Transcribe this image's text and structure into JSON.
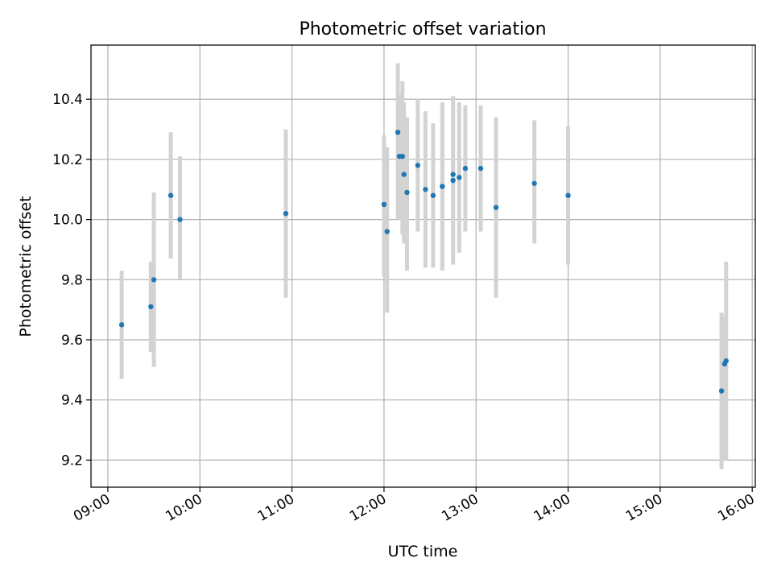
{
  "chart_data": {
    "type": "scatter",
    "title": "Photometric offset variation",
    "xlabel": "UTC time",
    "ylabel": "Photometric offset",
    "x_tick_labels": [
      "09:00",
      "10:00",
      "11:00",
      "12:00",
      "13:00",
      "14:00",
      "15:00",
      "16:00"
    ],
    "y_tick_labels": [
      "9.2",
      "9.4",
      "9.6",
      "9.8",
      "10.0",
      "10.2",
      "10.4"
    ],
    "xlim": [
      "08:49",
      "16:02"
    ],
    "ylim": [
      9.11,
      10.58
    ],
    "grid": true,
    "legend": "none",
    "colors": {
      "point": "#1f77b4",
      "errorbar": "#d3d3d3",
      "grid": "#b0b0b0"
    },
    "points": [
      {
        "x": "09:09",
        "y": 9.65,
        "ylo": 9.47,
        "yhi": 9.83
      },
      {
        "x": "09:28",
        "y": 9.71,
        "ylo": 9.56,
        "yhi": 9.86
      },
      {
        "x": "09:30",
        "y": 9.8,
        "ylo": 9.51,
        "yhi": 10.09
      },
      {
        "x": "09:41",
        "y": 10.08,
        "ylo": 9.87,
        "yhi": 10.29
      },
      {
        "x": "09:47",
        "y": 10.0,
        "ylo": 9.8,
        "yhi": 10.21
      },
      {
        "x": "10:56",
        "y": 10.02,
        "ylo": 9.74,
        "yhi": 10.3
      },
      {
        "x": "12:00",
        "y": 10.05,
        "ylo": 9.81,
        "yhi": 10.28
      },
      {
        "x": "12:02",
        "y": 9.96,
        "ylo": 9.69,
        "yhi": 10.24
      },
      {
        "x": "12:09",
        "y": 10.29,
        "ylo": 10.0,
        "yhi": 10.52
      },
      {
        "x": "12:10",
        "y": 10.21,
        "ylo": 10.0,
        "yhi": 10.42
      },
      {
        "x": "12:12",
        "y": 10.21,
        "ylo": 9.95,
        "yhi": 10.46
      },
      {
        "x": "12:13",
        "y": 10.15,
        "ylo": 9.92,
        "yhi": 10.39
      },
      {
        "x": "12:15",
        "y": 10.09,
        "ylo": 9.83,
        "yhi": 10.34
      },
      {
        "x": "12:22",
        "y": 10.18,
        "ylo": 9.96,
        "yhi": 10.4
      },
      {
        "x": "12:27",
        "y": 10.1,
        "ylo": 9.84,
        "yhi": 10.36
      },
      {
        "x": "12:32",
        "y": 10.08,
        "ylo": 9.84,
        "yhi": 10.32
      },
      {
        "x": "12:38",
        "y": 10.11,
        "ylo": 9.83,
        "yhi": 10.39
      },
      {
        "x": "12:38",
        "y": 10.11,
        "ylo": 9.84,
        "yhi": 10.38
      },
      {
        "x": "12:45",
        "y": 10.15,
        "ylo": 9.89,
        "yhi": 10.41
      },
      {
        "x": "12:45",
        "y": 10.13,
        "ylo": 9.85,
        "yhi": 10.41
      },
      {
        "x": "12:49",
        "y": 10.14,
        "ylo": 9.89,
        "yhi": 10.39
      },
      {
        "x": "12:53",
        "y": 10.17,
        "ylo": 9.96,
        "yhi": 10.38
      },
      {
        "x": "13:03",
        "y": 10.17,
        "ylo": 9.96,
        "yhi": 10.38
      },
      {
        "x": "13:13",
        "y": 10.04,
        "ylo": 9.74,
        "yhi": 10.34
      },
      {
        "x": "13:38",
        "y": 10.12,
        "ylo": 9.92,
        "yhi": 10.33
      },
      {
        "x": "14:00",
        "y": 10.08,
        "ylo": 9.85,
        "yhi": 10.31
      },
      {
        "x": "15:40",
        "y": 9.43,
        "ylo": 9.17,
        "yhi": 9.69
      },
      {
        "x": "15:42",
        "y": 9.52,
        "ylo": 9.2,
        "yhi": 9.68
      },
      {
        "x": "15:43",
        "y": 9.53,
        "ylo": 9.2,
        "yhi": 9.86
      }
    ]
  }
}
